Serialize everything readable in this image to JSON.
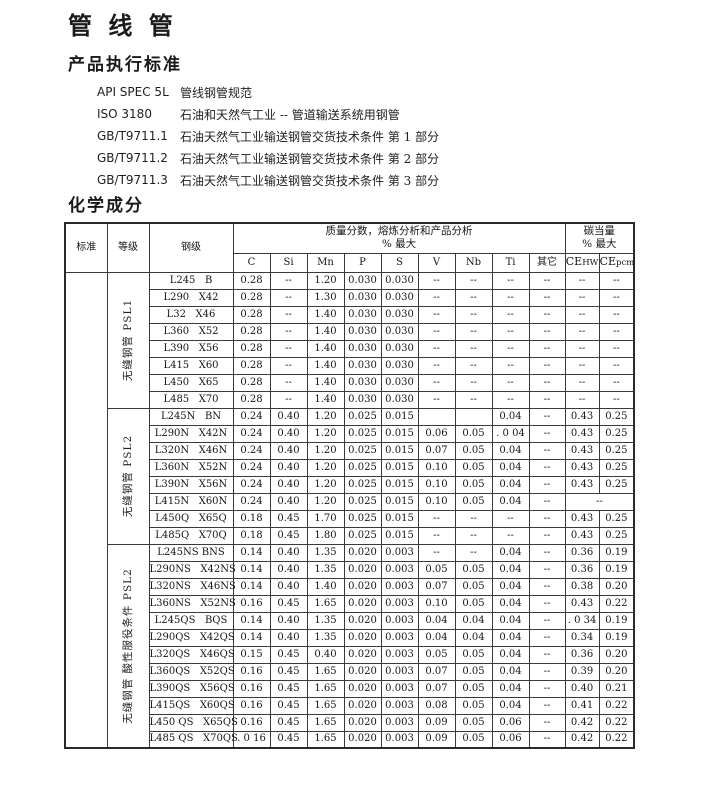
{
  "page": {
    "title": "管 线 管"
  },
  "standards_section": {
    "heading": "产品执行标准",
    "items": [
      {
        "code": "API SPEC 5L",
        "desc": "管线钢管规范"
      },
      {
        "code": "ISO 3180",
        "desc": "石油和天然气工业 -- 管道输送系统用钢管"
      },
      {
        "code": "GB/T9711.1",
        "desc": "石油天然气工业输送钢管交货技术条件 第 1 部分"
      },
      {
        "code": "GB/T9711.2",
        "desc": "石油天然气工业输送钢管交货技术条件 第 2 部分"
      },
      {
        "code": "GB/T9711.3",
        "desc": "石油天然气工业输送钢管交货技术条件 第 3 部分"
      }
    ]
  },
  "chemistry_section": {
    "heading": "化学成分",
    "table": {
      "col_headers": {
        "standard": "标准",
        "grade": "等级",
        "steel_grade": "钢级",
        "mass_line1": "质量分数，熔炼分析和产品分析",
        "mass_line2": "%  最大",
        "elements": [
          "C",
          "Si",
          "Mn",
          "P",
          "S",
          "V",
          "Nb",
          "Ti",
          "其它"
        ],
        "ce_line1": "碳当量",
        "ce_line2": "%  最大",
        "ce_cols": [
          {
            "base": "CE",
            "sub": "HW"
          },
          {
            "base": "CE",
            "sub": "pcm"
          }
        ]
      },
      "groups": [
        {
          "label": "无缝钢管 PSL1",
          "rows": [
            {
              "steel": "L245   B",
              "values": [
                "0.28",
                "--",
                "1.20",
                "0.030",
                "0.030",
                "--",
                "--",
                "--",
                "--",
                "--",
                "--"
              ]
            },
            {
              "steel": "L290   X42",
              "values": [
                "0.28",
                "--",
                "1.30",
                "0.030",
                "0.030",
                "--",
                "--",
                "--",
                "--",
                "--",
                "--"
              ]
            },
            {
              "steel": "L32   X46",
              "values": [
                "0.28",
                "--",
                "1.40",
                "0.030",
                "0.030",
                "--",
                "--",
                "--",
                "--",
                "--",
                "--"
              ]
            },
            {
              "steel": "L360   X52",
              "values": [
                "0.28",
                "--",
                "1.40",
                "0.030",
                "0.030",
                "--",
                "--",
                "--",
                "--",
                "--",
                "--"
              ]
            },
            {
              "steel": "L390   X56",
              "values": [
                "0.28",
                "--",
                "1.40",
                "0.030",
                "0.030",
                "--",
                "--",
                "--",
                "--",
                "--",
                "--"
              ]
            },
            {
              "steel": "L415   X60",
              "values": [
                "0.28",
                "--",
                "1.40",
                "0.030",
                "0.030",
                "--",
                "--",
                "--",
                "--",
                "--",
                "--"
              ]
            },
            {
              "steel": "L450   X65",
              "values": [
                "0.28",
                "--",
                "1.40",
                "0.030",
                "0.030",
                "--",
                "--",
                "--",
                "--",
                "--",
                "--"
              ]
            },
            {
              "steel": "L485   X70",
              "values": [
                "0.28",
                "--",
                "1.40",
                "0.030",
                "0.030",
                "--",
                "--",
                "--",
                "--",
                "--",
                "--"
              ]
            }
          ]
        },
        {
          "label": "无缝钢管 PSL2",
          "rows": [
            {
              "steel": "L245N   BN",
              "values": [
                "0.24",
                "0.40",
                "1.20",
                "0.025",
                "0.015",
                "",
                "",
                "0.04",
                "--",
                "0.43",
                "0.25"
              ]
            },
            {
              "steel": "L290N   X42N",
              "values": [
                "0.24",
                "0.40",
                "1.20",
                "0.025",
                "0.015",
                "0.06",
                "0.05",
                ". 0 04",
                "--",
                "0.43",
                "0.25"
              ]
            },
            {
              "steel": "L320N   X46N",
              "values": [
                "0.24",
                "0.40",
                "1.20",
                "0.025",
                "0.015",
                "0.07",
                "0.05",
                "0.04",
                "--",
                "0.43",
                "0.25"
              ]
            },
            {
              "steel": "L360N   X52N",
              "values": [
                "0.24",
                "0.40",
                "1.20",
                "0.025",
                "0.015",
                "0.10",
                "0.05",
                "0.04",
                "--",
                "0.43",
                "0.25"
              ]
            },
            {
              "steel": "L390N   X56N",
              "values": [
                "0.24",
                "0.40",
                "1.20",
                "0.025",
                "0.015",
                "0.10",
                "0.05",
                "0.04",
                "--",
                "0.43",
                "0.25"
              ]
            },
            {
              "steel": "L415N   X60N",
              "values": [
                "0.24",
                "0.40",
                "1.20",
                "0.025",
                "0.015",
                "0.10",
                "0.05",
                "0.04",
                "--",
                "--"
              ],
              "span_last_two": true
            },
            {
              "steel": "L450Q   X65Q",
              "values": [
                "0.18",
                "0.45",
                "1.70",
                "0.025",
                "0.015",
                "--",
                "--",
                "--",
                "--",
                "0.43",
                "0.25"
              ]
            },
            {
              "steel": "L485Q   X70Q",
              "values": [
                "0.18",
                "0.45",
                "1.80",
                "0.025",
                "0.015",
                "--",
                "--",
                "--",
                "--",
                "0.43",
                "0.25"
              ]
            }
          ]
        },
        {
          "label": "无缝钢管 酸性服役条件 PSL2",
          "rows": [
            {
              "steel": "L245NS BNS",
              "values": [
                "0.14",
                "0.40",
                "1.35",
                "0.020",
                "0.003",
                "--",
                "--",
                "0.04",
                "--",
                "0.36",
                "0.19"
              ]
            },
            {
              "steel": "L290NS   X42NS",
              "values": [
                "0.14",
                "0.40",
                "1.35",
                "0.020",
                "0.003",
                "0.05",
                "0.05",
                "0.04",
                "--",
                "0.36",
                "0.19"
              ]
            },
            {
              "steel": "L320NS   X46NS",
              "values": [
                "0.14",
                "0.40",
                "1.40",
                "0.020",
                "0.003",
                "0.07",
                "0.05",
                "0.04",
                "--",
                "0.38",
                "0.20"
              ]
            },
            {
              "steel": "L360NS   X52NS",
              "values": [
                "0.16",
                "0.45",
                "1.65",
                "0.020",
                "0.003",
                "0.10",
                "0.05",
                "0.04",
                "--",
                "0.43",
                "0.22"
              ]
            },
            {
              "steel": "L245QS   BQS",
              "values": [
                "0.14",
                "0.40",
                "1.35",
                "0.020",
                "0.003",
                "0.04",
                "0.04",
                "0.04",
                "--",
                ". 0 34",
                "0.19"
              ]
            },
            {
              "steel": "L290QS   X42QS",
              "values": [
                "0.14",
                "0.40",
                "1.35",
                "0.020",
                "0.003",
                "0.04",
                "0.04",
                "0.04",
                "--",
                "0.34",
                "0.19"
              ]
            },
            {
              "steel": "L320QS   X46QS",
              "values": [
                "0.15",
                "0.45",
                "0.40",
                "0.020",
                "0.003",
                "0.05",
                "0.05",
                "0.04",
                "--",
                "0.36",
                "0.20"
              ]
            },
            {
              "steel": "L360QS   X52QS",
              "values": [
                "0.16",
                "0.45",
                "1.65",
                "0.020",
                "0.003",
                "0.07",
                "0.05",
                "0.04",
                "--",
                "0.39",
                "0.20"
              ]
            },
            {
              "steel": "L390QS   X56QS",
              "values": [
                "0.16",
                "0.45",
                "1.65",
                "0.020",
                "0.003",
                "0.07",
                "0.05",
                "0.04",
                "--",
                "0.40",
                "0.21"
              ]
            },
            {
              "steel": "L415QS   X60QS",
              "values": [
                "0.16",
                "0.45",
                "1.65",
                "0.020",
                "0.003",
                "0.08",
                "0.05",
                "0.04",
                "--",
                "0.41",
                "0.22"
              ]
            },
            {
              "steel": "L450 QS   X65QS",
              "values": [
                "0.16",
                "0.45",
                "1.65",
                "0.020",
                "0.003",
                "0.09",
                "0.05",
                "0.06",
                "--",
                "0.42",
                "0.22"
              ]
            },
            {
              "steel": "L485 QS   X70QS",
              "values": [
                ". 0 16",
                "0.45",
                "1.65",
                "0.020",
                "0.003",
                "0.09",
                "0.05",
                "0.06",
                "--",
                "0.42",
                "0.22"
              ]
            }
          ]
        }
      ]
    }
  }
}
